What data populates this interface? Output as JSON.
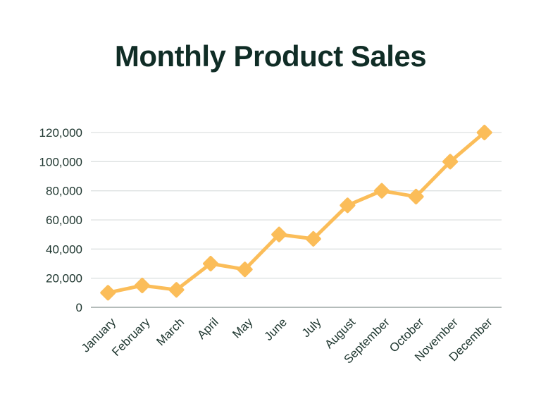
{
  "title": "Monthly Product Sales",
  "chart_data": {
    "type": "line",
    "title": "Monthly Product Sales",
    "categories": [
      "January",
      "February",
      "March",
      "April",
      "May",
      "June",
      "July",
      "August",
      "September",
      "October",
      "November",
      "December"
    ],
    "series": [
      {
        "name": "Monthly Product Sales",
        "values": [
          10000,
          15000,
          12000,
          30000,
          26000,
          50000,
          47000,
          70000,
          80000,
          76000,
          100000,
          120000
        ]
      }
    ],
    "xlabel": "",
    "ylabel": "",
    "ylim": [
      0,
      120000
    ],
    "ytick_step": 20000,
    "ytick_labels": [
      "0",
      "20,000",
      "40,000",
      "60,000",
      "80,000",
      "100,000",
      "120,000"
    ],
    "grid": "horizontal",
    "legend": "none",
    "marker": "diamond",
    "x_label_rotation_deg": 45,
    "colors": {
      "line": "#FBBD59",
      "marker": "#FBBD59",
      "title_text": "#102D26",
      "tick_text": "#1D352E",
      "gridline": "#DDE1E1",
      "axis_line": "#9CA6A4",
      "background": "#FFFFFF"
    }
  }
}
